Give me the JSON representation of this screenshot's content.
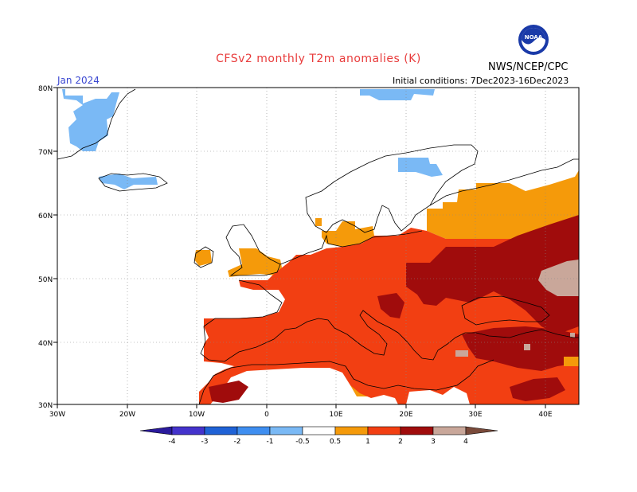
{
  "header": {
    "title": "CFSv2 monthly T2m anomalies (K)",
    "agency": "NWS/NCEP/CPC",
    "logo_text": "NOAA",
    "valid_month": "Jan 2024",
    "initial_conditions": "Initial conditions: 7Dec2023-16Dec2023"
  },
  "colors": {
    "title": "#e83b3b",
    "month": "#3a47d1",
    "land_outline": "#000000",
    "ocean": "#ffffff",
    "grid": "#888888"
  },
  "map": {
    "lat_labels": [
      "80N",
      "70N",
      "60N",
      "50N",
      "40N",
      "30N"
    ],
    "lon_labels": [
      "30W",
      "20W",
      "10W",
      "0",
      "10E",
      "20E",
      "30E",
      "40E"
    ]
  },
  "colorbar": {
    "labels": [
      "-4",
      "-3",
      "-2",
      "-1",
      "-0.5",
      "0.5",
      "1",
      "2",
      "3",
      "4"
    ],
    "colors": [
      "#2a1a9c",
      "#4433cc",
      "#1f62d6",
      "#3f8ef0",
      "#7ab9f5",
      "#ffffff",
      "#f59a0a",
      "#f23f12",
      "#a00c0c",
      "#c9a79a",
      "#7a4a3a"
    ]
  }
}
